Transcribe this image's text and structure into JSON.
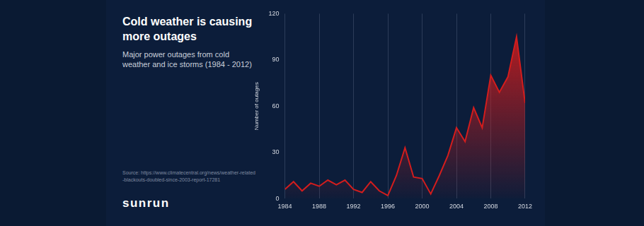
{
  "chart_data": {
    "type": "area",
    "title": "Cold weather is causing more outages",
    "subtitle": "Major power outages from cold weather and ice storms (1984 - 2012)",
    "source": "Source: https://www.climatecentral.org/news/weather-related-blackouts-doubled-since-2003-report-17281",
    "logo": "sunrun",
    "y_label": "Number of outages",
    "x": [
      1984,
      1985,
      1986,
      1987,
      1988,
      1989,
      1990,
      1991,
      1992,
      1993,
      1994,
      1995,
      1996,
      1997,
      1998,
      1999,
      2000,
      2001,
      2002,
      2003,
      2004,
      2005,
      2006,
      2007,
      2008,
      2009,
      2010,
      2011,
      2012
    ],
    "values": [
      6,
      11,
      5,
      10,
      8,
      12,
      9,
      12,
      6,
      4,
      11,
      5,
      2,
      15,
      33,
      14,
      13,
      3,
      15,
      28,
      46,
      37,
      59,
      46,
      80,
      69,
      79,
      105,
      62
    ],
    "color": "#d31d1d",
    "xlim": [
      1984,
      2012
    ],
    "xticks": [
      1984,
      1988,
      1992,
      1996,
      2000,
      2004,
      2008,
      2012
    ],
    "ylim": [
      0,
      120
    ],
    "yticks": [
      0,
      30,
      60,
      90,
      120
    ],
    "grid": "x"
  }
}
